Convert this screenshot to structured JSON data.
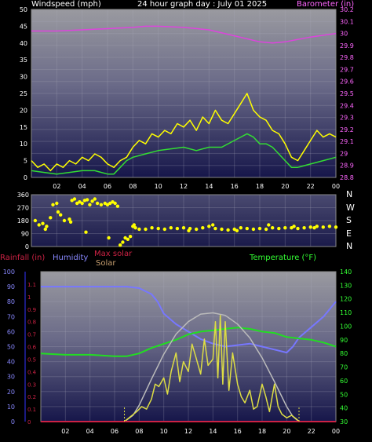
{
  "header": {
    "windspeed_label": "Windspeed (mph)",
    "graph_title": "24 hour graph day : July 01 2025",
    "barometer_label": "Barometer (in)"
  },
  "bottom_header": {
    "rainfall_label": "Rainfall (in)",
    "humidity_label": "Humidity",
    "maxsolar_label": "Max solar",
    "solar_label": "Solar",
    "temperature_label": "Temperature (°F)"
  },
  "direction_letters": [
    "N",
    "W",
    "S",
    "E",
    "N"
  ],
  "colors": {
    "wind_avg": "#33dd33",
    "wind_gust": "#ffff00",
    "barometer": "#dd44dd",
    "direction": "#ffff00",
    "humidity": "#7777ff",
    "temperature": "#22dd22",
    "solar": "#dddd44",
    "max_solar": "#bbbbbb",
    "rainfall": "#cc2244"
  },
  "chart_data": [
    {
      "type": "line",
      "name": "wind-barometer",
      "x_tick_labels": [
        "02",
        "04",
        "06",
        "08",
        "10",
        "12",
        "14",
        "16",
        "18",
        "20",
        "22",
        "00"
      ],
      "xlim": [
        0,
        24
      ],
      "y_left_ticks": [
        "0",
        "5",
        "10",
        "15",
        "20",
        "25",
        "30",
        "35",
        "40",
        "45",
        "50"
      ],
      "ylim_left": [
        0,
        50
      ],
      "y_right_ticks": [
        "28.8",
        "28.9",
        "29",
        "29.1",
        "29.2",
        "29.3",
        "29.4",
        "29.5",
        "29.6",
        "29.7",
        "29.8",
        "29.9",
        "30",
        "30.1",
        "30.2"
      ],
      "ylim_right": [
        28.8,
        30.2
      ],
      "series": [
        {
          "name": "Barometer (in)",
          "x": [
            0,
            2,
            4,
            6,
            8,
            9,
            10,
            12,
            14,
            16,
            18,
            19,
            20,
            22,
            24
          ],
          "values": [
            30.02,
            30.02,
            30.03,
            30.04,
            30.05,
            30.06,
            30.06,
            30.05,
            30.03,
            29.98,
            29.93,
            29.92,
            29.93,
            29.97,
            30.0
          ]
        },
        {
          "x": [
            0,
            1,
            2,
            3,
            4,
            5,
            6,
            6.5,
            7,
            7.5,
            8,
            9,
            10,
            11,
            12,
            13,
            14,
            15,
            16,
            16.5,
            17,
            17.5,
            18,
            18.5,
            19,
            20,
            20.5,
            21,
            22,
            23,
            24
          ],
          "values": [
            2,
            1.5,
            1,
            1.5,
            2,
            2,
            1,
            1,
            3,
            5,
            6,
            7,
            8,
            8.5,
            9,
            8,
            9,
            9,
            11,
            12,
            13,
            12,
            10,
            10,
            9,
            5,
            3,
            3,
            4,
            5,
            6
          ]
        },
        {
          "x": [
            0,
            0.5,
            1,
            1.5,
            2,
            2.5,
            3,
            3.5,
            4,
            4.5,
            5,
            5.5,
            6,
            6.5,
            7,
            7.5,
            8,
            8.5,
            9,
            9.5,
            10,
            10.5,
            11,
            11.5,
            12,
            12.5,
            13,
            13.5,
            14,
            14.5,
            15,
            15.5,
            16,
            16.5,
            17,
            17.5,
            18,
            18.5,
            19,
            19.5,
            20,
            20.5,
            21,
            21.5,
            22,
            22.5,
            23,
            23.5,
            24
          ],
          "values": [
            5,
            3,
            4,
            2,
            4,
            3,
            5,
            4,
            6,
            5,
            7,
            6,
            4,
            3,
            5,
            6,
            9,
            11,
            10,
            13,
            12,
            14,
            13,
            16,
            15,
            17,
            14,
            18,
            16,
            20,
            17,
            16,
            19,
            22,
            25,
            20,
            18,
            17,
            14,
            13,
            10,
            6,
            5,
            8,
            11,
            14,
            12,
            13,
            12
          ]
        }
      ]
    },
    {
      "type": "scatter",
      "name": "wind-direction",
      "y_ticks": [
        "0",
        "90",
        "180",
        "270",
        "360"
      ],
      "ylim": [
        0,
        360
      ],
      "y_direction_labels": [
        "N",
        "W",
        "S",
        "E",
        "N"
      ],
      "x_tick_labels": [
        "02",
        "04",
        "06",
        "08",
        "10",
        "12",
        "14",
        "16",
        "18",
        "20",
        "22",
        "00"
      ],
      "xlim": [
        0,
        24
      ],
      "points_x": [
        0.3,
        0.6,
        0.9,
        1.2,
        1.5,
        1.7,
        2.0,
        2.1,
        2.3,
        2.6,
        3.0,
        3.2,
        3.4,
        3.6,
        3.8,
        4.0,
        4.2,
        4.4,
        4.6,
        4.8,
        5.0,
        5.2,
        5.5,
        5.8,
        6.0,
        6.2,
        6.4,
        6.6,
        6.8,
        7.0,
        7.2,
        7.4,
        7.6,
        7.8,
        8.0,
        8.2,
        8.5,
        9.0,
        9.5,
        10.0,
        10.5,
        11.0,
        11.5,
        12.0,
        12.5,
        13.0,
        13.5,
        14.0,
        14.5,
        15.0,
        15.5,
        16.0,
        16.5,
        17.0,
        17.5,
        18.0,
        18.5,
        19.0,
        19.5,
        20.0,
        20.5,
        21.0,
        21.5,
        22.0,
        22.5,
        23.0,
        23.5,
        24.0,
        4.3,
        6.1,
        8.1,
        12.4,
        14.3,
        16.2,
        18.7,
        20.7,
        22.3,
        1.1,
        3.1
      ],
      "points_y": [
        180,
        150,
        160,
        140,
        200,
        290,
        300,
        240,
        220,
        180,
        190,
        320,
        330,
        300,
        310,
        300,
        320,
        325,
        290,
        315,
        330,
        300,
        290,
        300,
        290,
        300,
        310,
        300,
        280,
        10,
        30,
        60,
        50,
        70,
        140,
        130,
        120,
        120,
        130,
        125,
        120,
        130,
        125,
        130,
        125,
        120,
        130,
        140,
        125,
        120,
        115,
        120,
        130,
        125,
        120,
        125,
        120,
        130,
        125,
        130,
        130,
        125,
        130,
        135,
        140,
        135,
        140,
        135,
        100,
        60,
        150,
        110,
        150,
        110,
        150,
        140,
        130,
        120,
        170
      ]
    },
    {
      "type": "line",
      "name": "rain-humidity-solar-temperature",
      "x_tick_labels": [
        "02",
        "04",
        "06",
        "08",
        "10",
        "12",
        "14",
        "16",
        "18",
        "20",
        "22",
        "00"
      ],
      "xlim": [
        0,
        24
      ],
      "y_rain_ticks": [
        "0",
        "0.1",
        "0.2",
        "0.3",
        "0.4",
        "0.5",
        "0.6",
        "0.7",
        "0.8",
        "0.9",
        "1",
        "1.1"
      ],
      "ylim_rain": [
        0,
        1.2
      ],
      "y_humidity_ticks": [
        "0",
        "10",
        "20",
        "30",
        "40",
        "50",
        "60",
        "70",
        "80",
        "90",
        "100"
      ],
      "ylim_humidity": [
        0,
        100
      ],
      "y_temperature_ticks": [
        "30",
        "40",
        "50",
        "60",
        "70",
        "80",
        "90",
        "100",
        "110",
        "120",
        "130",
        "140"
      ],
      "ylim_temperature": [
        30,
        140
      ],
      "series": [
        {
          "name": "Humidity",
          "x": [
            0,
            2,
            4,
            6,
            7,
            8,
            9,
            9.5,
            10,
            11,
            12,
            13,
            14,
            15,
            16,
            17,
            18,
            19,
            20,
            20.5,
            21,
            22,
            23,
            24
          ],
          "values": [
            90,
            90,
            90,
            90,
            90,
            89,
            85,
            80,
            72,
            65,
            60,
            55,
            52,
            50,
            51,
            52,
            50,
            48,
            46,
            50,
            56,
            63,
            70,
            80
          ]
        },
        {
          "name": "Temperature (°F)",
          "x": [
            0,
            2,
            4,
            6,
            7,
            8,
            9,
            10,
            11,
            12,
            13,
            14,
            15,
            16,
            17,
            18,
            19,
            20,
            21,
            22,
            23,
            24
          ],
          "values": [
            80,
            79,
            79,
            78,
            78,
            80,
            84,
            87,
            90,
            94,
            96,
            97,
            98,
            99,
            98,
            96,
            95,
            92,
            91,
            90,
            88,
            85
          ]
        },
        {
          "name": "Max solar",
          "x": [
            6.8,
            7.5,
            8,
            9,
            10,
            11,
            12,
            13,
            14,
            15,
            16,
            17,
            18,
            19,
            20,
            20.5,
            21
          ],
          "values": [
            0.0,
            0.05,
            0.13,
            0.34,
            0.54,
            0.7,
            0.8,
            0.86,
            0.87,
            0.85,
            0.78,
            0.67,
            0.51,
            0.32,
            0.12,
            0.04,
            0.0
          ]
        },
        {
          "name": "Solar",
          "x": [
            6.8,
            7.3,
            7.8,
            8.2,
            8.6,
            9,
            9.3,
            9.6,
            10,
            10.3,
            10.6,
            11,
            11.3,
            11.6,
            12,
            12.3,
            12.6,
            13,
            13.3,
            13.6,
            14,
            14.2,
            14.4,
            14.6,
            14.8,
            15,
            15.3,
            15.6,
            16,
            16.3,
            16.6,
            17,
            17.3,
            17.6,
            18,
            18.3,
            18.6,
            19,
            19.3,
            19.6,
            20,
            20.4,
            20.8,
            21
          ],
          "values": [
            0.0,
            0.04,
            0.08,
            0.12,
            0.1,
            0.18,
            0.3,
            0.28,
            0.35,
            0.22,
            0.4,
            0.55,
            0.32,
            0.48,
            0.4,
            0.62,
            0.52,
            0.38,
            0.66,
            0.45,
            0.5,
            0.8,
            0.35,
            0.85,
            0.3,
            0.8,
            0.25,
            0.55,
            0.3,
            0.2,
            0.15,
            0.25,
            0.1,
            0.12,
            0.3,
            0.2,
            0.08,
            0.3,
            0.12,
            0.06,
            0.03,
            0.05,
            0.02,
            0.0
          ]
        },
        {
          "name": "Rainfall (in)",
          "x": [
            0,
            24
          ],
          "values": [
            0,
            0
          ]
        }
      ]
    }
  ]
}
